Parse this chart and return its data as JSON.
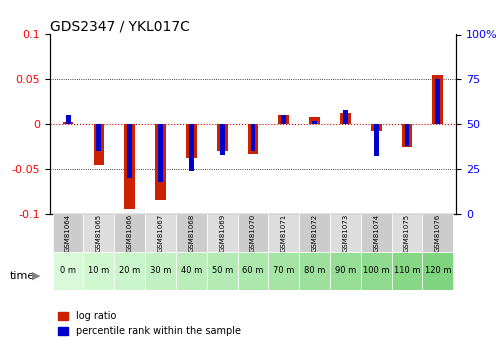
{
  "title": "GDS2347 / YKL017C",
  "samples": [
    "GSM81064",
    "GSM81065",
    "GSM81066",
    "GSM81067",
    "GSM81068",
    "GSM81069",
    "GSM81070",
    "GSM81071",
    "GSM81072",
    "GSM81073",
    "GSM81074",
    "GSM81075",
    "GSM81076"
  ],
  "time_labels": [
    "0 m",
    "10 m",
    "20 m",
    "30 m",
    "40 m",
    "50 m",
    "60 m",
    "70 m",
    "80 m",
    "90 m",
    "100 m",
    "110 m",
    "120 m"
  ],
  "log_ratio": [
    0.002,
    -0.045,
    -0.095,
    -0.085,
    -0.038,
    -0.03,
    -0.033,
    0.01,
    0.008,
    0.012,
    -0.008,
    -0.025,
    0.055
  ],
  "pct_rank": [
    55,
    35,
    20,
    18,
    24,
    33,
    35,
    55,
    52,
    58,
    32,
    38,
    75
  ],
  "ylim_left": [
    -0.1,
    0.1
  ],
  "ylim_right": [
    0,
    100
  ],
  "bar_color_red": "#cc2200",
  "bar_color_blue": "#0000cc",
  "grid_color": "#000000",
  "zero_line_color": "#cc0000",
  "bg_color": "#ffffff",
  "time_row_colors": [
    "#e8f5e8",
    "#c8ecc8",
    "#a8e0a8",
    "#88d488",
    "#68c868"
  ],
  "sample_bg_colors_gray": "#d0d0d0",
  "sample_bg_colors_light": "#e8e8e8"
}
